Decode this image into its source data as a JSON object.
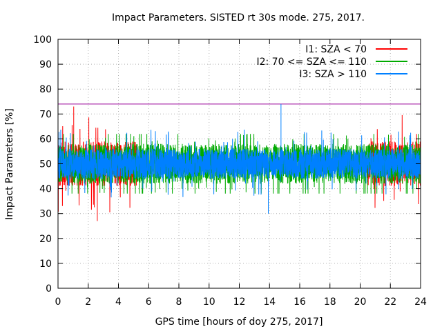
{
  "chart_data": {
    "type": "line",
    "title": "Impact Parameters. SISTED rt 30s mode. 275, 2017.",
    "xlabel": "GPS time [hours of doy 275, 2017]",
    "ylabel": "Impact Parameters [%]",
    "xlim": [
      0,
      24
    ],
    "ylim": [
      0,
      100
    ],
    "xticks": [
      0,
      2,
      4,
      6,
      8,
      10,
      12,
      14,
      16,
      18,
      20,
      22,
      24
    ],
    "yticks": [
      0,
      10,
      20,
      30,
      40,
      50,
      60,
      70,
      80,
      90,
      100
    ],
    "xtick_labels": [
      "0",
      "2",
      "4",
      "6",
      "8",
      "10",
      "12",
      "14",
      "16",
      "18",
      "20",
      "22",
      "24"
    ],
    "ytick_labels": [
      "0",
      "10",
      "20",
      "30",
      "40",
      "50",
      "60",
      "70",
      "80",
      "90",
      "100"
    ],
    "grid": true,
    "legend_position": "top-right",
    "threshold": {
      "value": 74,
      "color": "#990099"
    },
    "series": [
      {
        "name": "I1: SZA < 70",
        "color": "#ff0000",
        "segments": [
          [
            0,
            5.2
          ],
          [
            20.5,
            24
          ]
        ],
        "center": 50,
        "typical_range": [
          42,
          60
        ],
        "extremes": {
          "max": 73,
          "min": 27
        }
      },
      {
        "name": "I2: 70 <= SZA <= 110",
        "color": "#00aa00",
        "segments": [
          [
            0,
            24
          ]
        ],
        "center": 50,
        "typical_range": [
          42,
          58
        ],
        "extremes": {
          "max": 62,
          "min": 38
        }
      },
      {
        "name": "I3: SZA > 110",
        "color": "#0080ff",
        "segments": [
          [
            0,
            24
          ]
        ],
        "center": 50,
        "typical_range": [
          44,
          56
        ],
        "extremes": {
          "max": 74,
          "min": 30
        }
      }
    ]
  }
}
